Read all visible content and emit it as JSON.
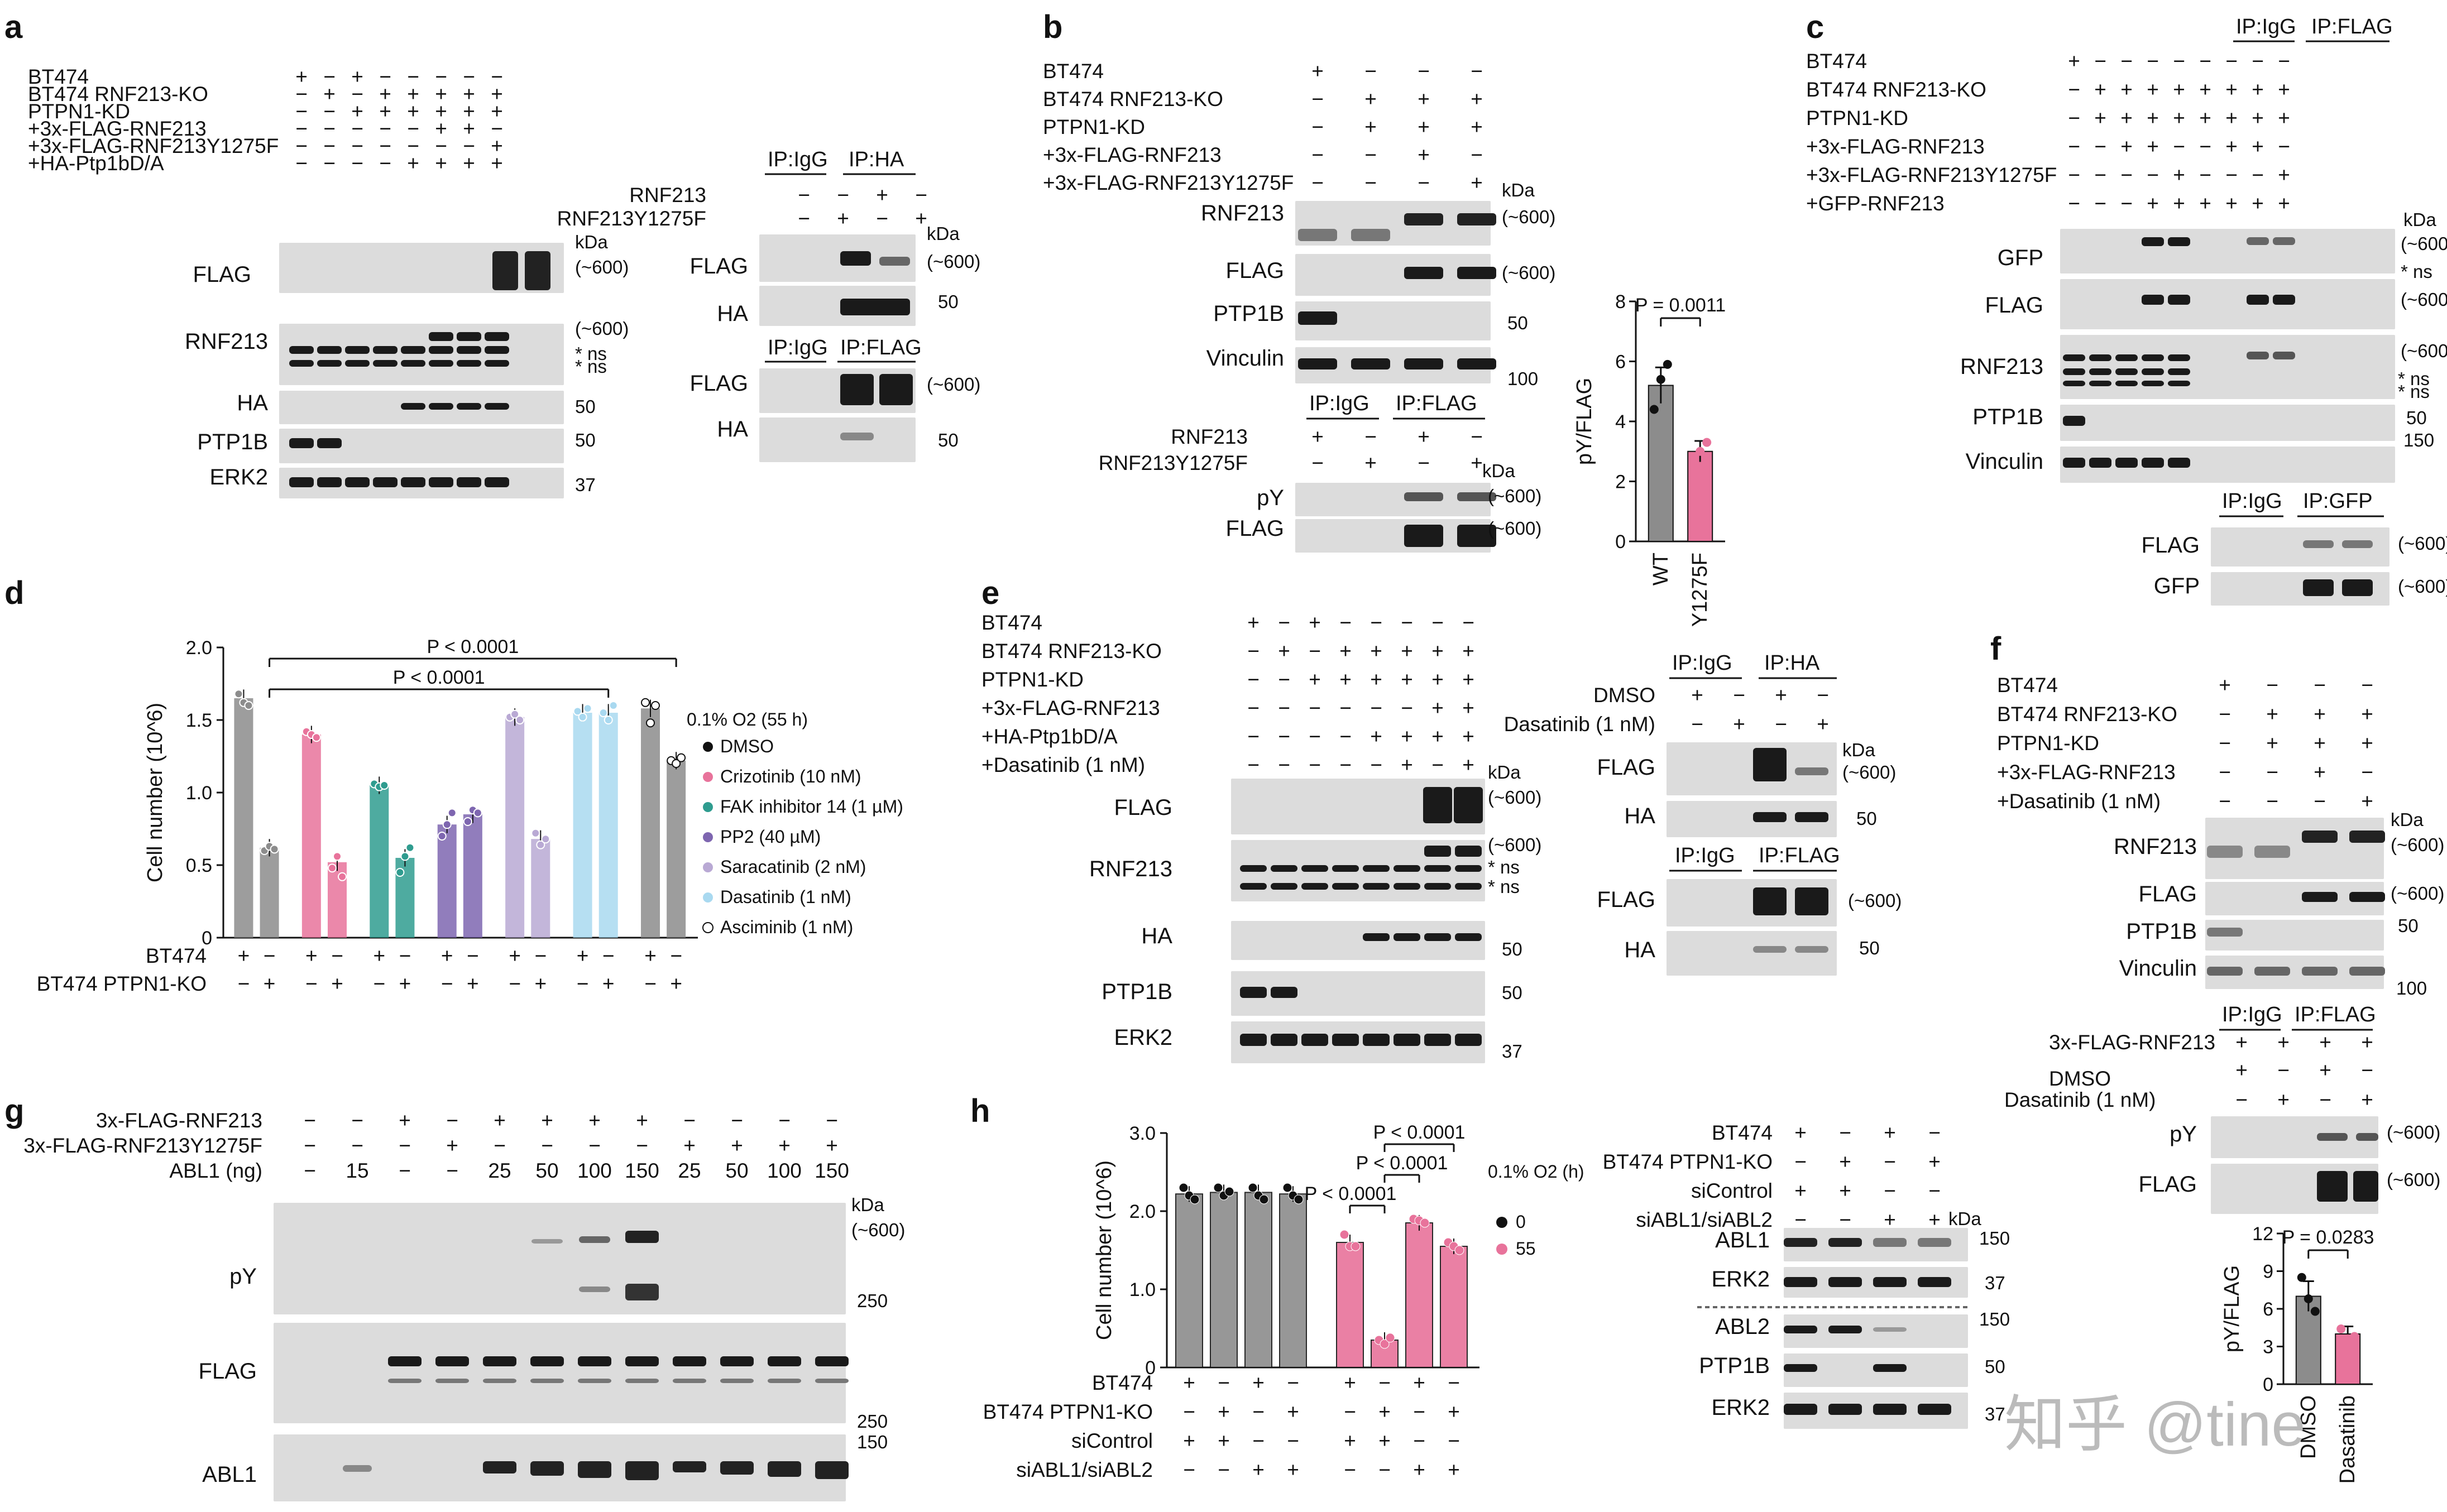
{
  "panels": {
    "a": {
      "letter": "a",
      "rows": [
        {
          "label": "BT474",
          "signs": [
            "+",
            "−",
            "+",
            "−",
            "−",
            "−",
            "−",
            "−"
          ]
        },
        {
          "label": "BT474 RNF213-KO",
          "signs": [
            "−",
            "+",
            "−",
            "+",
            "+",
            "+",
            "+",
            "+"
          ]
        },
        {
          "label": "PTPN1-KD",
          "signs": [
            "−",
            "−",
            "+",
            "+",
            "+",
            "+",
            "+",
            "+"
          ]
        },
        {
          "label": "+3x-FLAG-RNF213",
          "signs": [
            "−",
            "−",
            "−",
            "−",
            "−",
            "+",
            "+",
            "−"
          ]
        },
        {
          "label": "+3x-FLAG-RNF213Y1275F",
          "signs": [
            "−",
            "−",
            "−",
            "−",
            "−",
            "−",
            "−",
            "+"
          ]
        },
        {
          "label": "+HA-Ptp1bD/A",
          "signs": [
            "−",
            "−",
            "−",
            "−",
            "+",
            "+",
            "+",
            "+"
          ]
        }
      ],
      "blots": [
        "FLAG",
        "RNF213",
        "HA",
        "PTP1B",
        "ERK2"
      ],
      "mw": [
        "kDa",
        "(~600)",
        "(~600)",
        "* ns",
        "* ns",
        "50",
        "50",
        "37"
      ],
      "ip": {
        "ip1": "IP:IgG",
        "ip2": "IP:HA",
        "ip3": "IP:IgG",
        "ip4": "IP:FLAG",
        "row1": "RNF213",
        "row2": "RNF213Y1275F",
        "row1_signs": [
          "−",
          "−",
          "+",
          "−"
        ],
        "row2_signs": [
          "−",
          "+",
          "−",
          "+"
        ],
        "blots": [
          "FLAG",
          "HA",
          "FLAG",
          "HA"
        ],
        "mw": [
          "kDa",
          "(~600)",
          "50",
          "(~600)",
          "50"
        ]
      }
    },
    "b": {
      "letter": "b",
      "rows": [
        {
          "label": "BT474",
          "signs": [
            "+",
            "−",
            "−",
            "−"
          ]
        },
        {
          "label": "BT474 RNF213-KO",
          "signs": [
            "−",
            "+",
            "+",
            "+"
          ]
        },
        {
          "label": "PTPN1-KD",
          "signs": [
            "−",
            "+",
            "+",
            "+"
          ]
        },
        {
          "label": "+3x-FLAG-RNF213",
          "signs": [
            "−",
            "−",
            "+",
            "−"
          ]
        },
        {
          "label": "+3x-FLAG-RNF213Y1275F",
          "signs": [
            "−",
            "−",
            "−",
            "+"
          ]
        }
      ],
      "blots": [
        "RNF213",
        "FLAG",
        "PTP1B",
        "Vinculin"
      ],
      "mw": [
        "kDa",
        "(~600)",
        "(~600)",
        "50",
        "100"
      ],
      "ip": {
        "ip1": "IP:IgG",
        "ip2": "IP:FLAG",
        "row1": "RNF213",
        "row2": "RNF213Y1275F",
        "row1_signs": [
          "+",
          "−",
          "+",
          "−"
        ],
        "row2_signs": [
          "−",
          "+",
          "−",
          "+"
        ],
        "blots": [
          "pY",
          "FLAG"
        ],
        "mw": [
          "kDa",
          "(~600)",
          "(~600)"
        ]
      }
    },
    "c": {
      "letter": "c",
      "ip_header": [
        "IP:IgG",
        "IP:FLAG"
      ],
      "rows": [
        {
          "label": "BT474",
          "signs": [
            "+",
            "−",
            "−",
            "−",
            "−",
            "−",
            "−",
            "−",
            "−"
          ]
        },
        {
          "label": "BT474 RNF213-KO",
          "signs": [
            "−",
            "+",
            "+",
            "+",
            "+",
            "+",
            "+",
            "+",
            "+"
          ]
        },
        {
          "label": "PTPN1-KD",
          "signs": [
            "−",
            "+",
            "+",
            "+",
            "+",
            "+",
            "+",
            "+",
            "+"
          ]
        },
        {
          "label": "+3x-FLAG-RNF213",
          "signs": [
            "−",
            "−",
            "+",
            "+",
            "−",
            "−",
            "+",
            "+",
            "−"
          ]
        },
        {
          "label": "+3x-FLAG-RNF213Y1275F",
          "signs": [
            "−",
            "−",
            "−",
            "−",
            "+",
            "−",
            "−",
            "−",
            "+"
          ]
        },
        {
          "label": "+GFP-RNF213",
          "signs": [
            "−",
            "−",
            "−",
            "+",
            "+",
            "+",
            "+",
            "+",
            "+"
          ]
        }
      ],
      "blots": [
        "GFP",
        "FLAG",
        "RNF213",
        "PTP1B",
        "Vinculin"
      ],
      "mw": [
        "kDa",
        "(~600)",
        "* ns",
        "(~600)",
        "(~600)",
        "* ns",
        "* ns",
        "50",
        "150"
      ],
      "ip": {
        "ip1": "IP:IgG",
        "ip2": "IP:GFP",
        "blots": [
          "FLAG",
          "GFP"
        ],
        "mw": [
          "(~600)",
          "(~600)"
        ]
      }
    },
    "e": {
      "letter": "e",
      "rows": [
        {
          "label": "BT474",
          "signs": [
            "+",
            "−",
            "+",
            "−",
            "−",
            "−",
            "−",
            "−"
          ]
        },
        {
          "label": "BT474 RNF213-KO",
          "signs": [
            "−",
            "+",
            "−",
            "+",
            "+",
            "+",
            "+",
            "+"
          ]
        },
        {
          "label": "PTPN1-KD",
          "signs": [
            "−",
            "−",
            "+",
            "+",
            "+",
            "+",
            "+",
            "+"
          ]
        },
        {
          "label": "+3x-FLAG-RNF213",
          "signs": [
            "−",
            "−",
            "−",
            "−",
            "−",
            "−",
            "+",
            "+"
          ]
        },
        {
          "label": "+HA-Ptp1bD/A",
          "signs": [
            "−",
            "−",
            "−",
            "−",
            "+",
            "+",
            "+",
            "+"
          ]
        },
        {
          "label": "+Dasatinib (1 nM)",
          "signs": [
            "−",
            "−",
            "−",
            "−",
            "−",
            "+",
            "−",
            "+"
          ]
        }
      ],
      "blots": [
        "FLAG",
        "RNF213",
        "HA",
        "PTP1B",
        "ERK2"
      ],
      "mw": [
        "kDa",
        "(~600)",
        "(~600)",
        "* ns",
        "* ns",
        "50",
        "50",
        "37"
      ],
      "ip": {
        "ip1": "IP:IgG",
        "ip2": "IP:HA",
        "ip3": "IP:IgG",
        "ip4": "IP:FLAG",
        "row1": "DMSO",
        "row2": "Dasatinib (1 nM)",
        "row1_signs": [
          "+",
          "−",
          "+",
          "−"
        ],
        "row2_signs": [
          "−",
          "+",
          "−",
          "+"
        ],
        "blots": [
          "FLAG",
          "HA",
          "FLAG",
          "HA"
        ],
        "mw": [
          "kDa",
          "(~600)",
          "50",
          "(~600)",
          "50"
        ]
      }
    },
    "f": {
      "letter": "f",
      "rows": [
        {
          "label": "BT474",
          "signs": [
            "+",
            "−",
            "−",
            "−"
          ]
        },
        {
          "label": "BT474 RNF213-KO",
          "signs": [
            "−",
            "+",
            "+",
            "+"
          ]
        },
        {
          "label": "PTPN1-KD",
          "signs": [
            "−",
            "+",
            "+",
            "+"
          ]
        },
        {
          "label": "+3x-FLAG-RNF213",
          "signs": [
            "−",
            "−",
            "+",
            "−"
          ]
        },
        {
          "label": "+Dasatinib (1 nM)",
          "signs": [
            "−",
            "−",
            "−",
            "+"
          ]
        }
      ],
      "blots": [
        "RNF213",
        "FLAG",
        "PTP1B",
        "Vinculin"
      ],
      "mw": [
        "kDa",
        "(~600)",
        "(~600)",
        "50",
        "100"
      ],
      "ip": {
        "ip1": "IP:IgG",
        "ip2": "IP:FLAG",
        "rows": [
          {
            "label": "3x-FLAG-RNF213",
            "signs": [
              "+",
              "+",
              "+",
              "+"
            ]
          },
          {
            "label": "DMSO",
            "signs": [
              "+",
              "−",
              "+",
              "−"
            ]
          },
          {
            "label": "Dasatinib (1 nM)",
            "signs": [
              "−",
              "+",
              "−",
              "+"
            ]
          }
        ],
        "blots": [
          "pY",
          "FLAG"
        ],
        "mw": [
          "(~600)",
          "(~600)"
        ]
      }
    },
    "g": {
      "letter": "g",
      "rows": [
        {
          "label": "3x-FLAG-RNF213",
          "signs": [
            "−",
            "−",
            "+",
            "−",
            "+",
            "+",
            "+",
            "+",
            "−",
            "−",
            "−",
            "−"
          ]
        },
        {
          "label": "3x-FLAG-RNF213Y1275F",
          "signs": [
            "−",
            "−",
            "−",
            "+",
            "−",
            "−",
            "−",
            "−",
            "+",
            "+",
            "+",
            "+"
          ]
        },
        {
          "label": "ABL1 (ng)",
          "signs": [
            "−",
            "15",
            "−",
            "−",
            "25",
            "50",
            "100",
            "150",
            "25",
            "50",
            "100",
            "150"
          ]
        }
      ],
      "blots": [
        "pY",
        "FLAG",
        "ABL1"
      ],
      "mw": [
        "kDa",
        "(~600)",
        "250",
        "250",
        "150"
      ]
    },
    "h_blot": {
      "rows": [
        {
          "label": "BT474",
          "signs": [
            "+",
            "−",
            "+",
            "−"
          ]
        },
        {
          "label": "BT474 PTPN1-KO",
          "signs": [
            "−",
            "+",
            "−",
            "+"
          ]
        },
        {
          "label": "siControl",
          "signs": [
            "+",
            "+",
            "−",
            "−"
          ]
        },
        {
          "label": "siABL1/siABL2",
          "signs": [
            "−",
            "−",
            "+",
            "+"
          ]
        }
      ],
      "blots": [
        "ABL1",
        "ERK2",
        "ABL2",
        "PTP1B",
        "ERK2"
      ],
      "mw": [
        "kDa",
        "150",
        "37",
        "150",
        "50",
        "37"
      ]
    }
  },
  "charts": {
    "b_bar": {
      "letter": "b"
    },
    "d": {
      "letter": "d"
    },
    "h": {
      "letter": "h"
    },
    "f_bar": {
      "letter": "f"
    }
  },
  "watermark": "知乎 @tine",
  "chart_data": [
    {
      "id": "b",
      "type": "bar",
      "categories": [
        "WT",
        "Y1275F"
      ],
      "values": [
        5.2,
        3.0
      ],
      "errors": [
        0.6,
        0.35
      ],
      "points": [
        [
          4.4,
          5.4,
          5.9
        ],
        [
          2.7,
          3.0,
          3.3
        ]
      ],
      "colors": [
        "#8c8c8c",
        "#e8739b"
      ],
      "ylabel": "pY/FLAG",
      "ylim": [
        0,
        8
      ],
      "yticks": [
        0,
        2,
        4,
        6,
        8
      ],
      "annotations": [
        {
          "text": "P = 0.0011",
          "between": [
            0,
            1
          ]
        }
      ]
    },
    {
      "id": "d",
      "type": "bar",
      "ylabel": "Cell number (10^6)",
      "ylim": [
        0,
        2.0
      ],
      "yticks": [
        "0",
        "0.5",
        "1.0",
        "1.5",
        "2.0"
      ],
      "legend_title": "0.1% O2 (55 h)",
      "series": [
        {
          "name": "DMSO",
          "color": "#8c8c8c",
          "values": [
            1.65,
            0.62
          ],
          "points": [
            [
              1.68,
              1.62,
              1.6
            ],
            [
              0.6,
              0.63,
              0.61
            ]
          ]
        },
        {
          "name": "Crizotinib (10 nM)",
          "color": "#e8739b",
          "values": [
            1.4,
            0.52
          ],
          "points": [
            [
              1.42,
              1.4,
              1.38
            ],
            [
              0.48,
              0.56,
              0.42
            ]
          ]
        },
        {
          "name": "FAK inhibitor 14 (1 µM)",
          "color": "#2f9c8f",
          "values": [
            1.05,
            0.55
          ],
          "points": [
            [
              1.06,
              1.04,
              1.05
            ],
            [
              0.45,
              0.56,
              0.62
            ]
          ]
        },
        {
          "name": "PP2 (40 µM)",
          "color": "#7e66b0",
          "values": [
            0.78,
            0.85
          ],
          "points": [
            [
              0.7,
              0.78,
              0.86
            ],
            [
              0.8,
              0.88,
              0.86
            ]
          ]
        },
        {
          "name": "Saracatinib (2 nM)",
          "color": "#b9a9d4",
          "values": [
            1.52,
            0.68
          ],
          "points": [
            [
              1.52,
              1.54,
              1.5
            ],
            [
              0.72,
              0.64,
              0.68
            ]
          ]
        },
        {
          "name": "Dasatinib (1 nM)",
          "color": "#a9d9f0",
          "values": [
            1.55,
            1.55
          ],
          "points": [
            [
              1.56,
              1.52,
              1.58
            ],
            [
              1.55,
              1.5,
              1.6
            ]
          ]
        },
        {
          "name": "Asciminib (1 nM)",
          "color": "#8c8c8c",
          "values": [
            1.58,
            1.22
          ],
          "points": [
            [
              1.62,
              1.48,
              1.6
            ],
            [
              1.22,
              1.2,
              1.24
            ]
          ]
        }
      ],
      "xrows": [
        {
          "label": "BT474",
          "signs": [
            "+",
            "−",
            "+",
            "−",
            "+",
            "−",
            "+",
            "−",
            "+",
            "−",
            "+",
            "−",
            "+",
            "−"
          ]
        },
        {
          "label": "BT474 PTPN1-KO",
          "signs": [
            "−",
            "+",
            "−",
            "+",
            "−",
            "+",
            "−",
            "+",
            "−",
            "+",
            "−",
            "+",
            "−",
            "+"
          ]
        }
      ],
      "annotations": [
        {
          "text": "P < 0.0001",
          "between": [
            1,
            13
          ]
        },
        {
          "text": "P < 0.0001",
          "between": [
            1,
            11
          ]
        }
      ]
    },
    {
      "id": "h",
      "type": "bar",
      "ylabel": "Cell number (10^6)",
      "ylim": [
        0,
        3.0
      ],
      "yticks": [
        "0",
        "1.0",
        "2.0",
        "3.0"
      ],
      "legend_title": "0.1% O2 (h)",
      "series": [
        {
          "name": "0",
          "color": "#8c8c8c",
          "values": [
            2.22,
            2.24,
            2.24,
            2.22
          ]
        },
        {
          "name": "55",
          "color": "#e8739b",
          "values": [
            1.6,
            0.35,
            1.85,
            1.55
          ]
        }
      ],
      "points": [
        [
          2.3,
          2.2,
          2.15
        ],
        [
          2.3,
          2.2,
          2.25
        ],
        [
          2.3,
          2.2,
          2.15
        ],
        [
          2.3,
          2.2,
          2.15
        ],
        [
          1.7,
          1.55,
          1.55
        ],
        [
          0.35,
          0.3,
          0.38
        ],
        [
          1.9,
          1.88,
          1.85
        ],
        [
          1.6,
          1.55,
          1.5
        ]
      ],
      "xrows": [
        {
          "label": "BT474",
          "signs": [
            "+",
            "−",
            "+",
            "−",
            "+",
            "−",
            "+",
            "−"
          ]
        },
        {
          "label": "BT474 PTPN1-KO",
          "signs": [
            "−",
            "+",
            "−",
            "+",
            "−",
            "+",
            "−",
            "+"
          ]
        },
        {
          "label": "siControl",
          "signs": [
            "+",
            "+",
            "−",
            "−",
            "+",
            "+",
            "−",
            "−"
          ]
        },
        {
          "label": "siABL1/siABL2",
          "signs": [
            "−",
            "−",
            "+",
            "+",
            "−",
            "−",
            "+",
            "+"
          ]
        }
      ],
      "annotations": [
        {
          "text": "P < 0.0001",
          "between": [
            4,
            5
          ]
        },
        {
          "text": "P < 0.0001",
          "between": [
            5,
            6
          ]
        },
        {
          "text": "P < 0.0001",
          "between": [
            5,
            7
          ]
        }
      ]
    },
    {
      "id": "f",
      "type": "bar",
      "categories": [
        "DMSO",
        "Dasatinib"
      ],
      "values": [
        7.0,
        4.0
      ],
      "errors": [
        1.2,
        0.6
      ],
      "points": [
        [
          8.5,
          6.8,
          5.8
        ],
        [
          4.4,
          3.6,
          3.8
        ]
      ],
      "colors": [
        "#8c8c8c",
        "#e8739b"
      ],
      "ylabel": "pY/FLAG",
      "ylim": [
        0,
        12
      ],
      "yticks": [
        0,
        3,
        6,
        9,
        12
      ],
      "annotations": [
        {
          "text": "P = 0.0283",
          "between": [
            0,
            1
          ]
        }
      ]
    }
  ]
}
